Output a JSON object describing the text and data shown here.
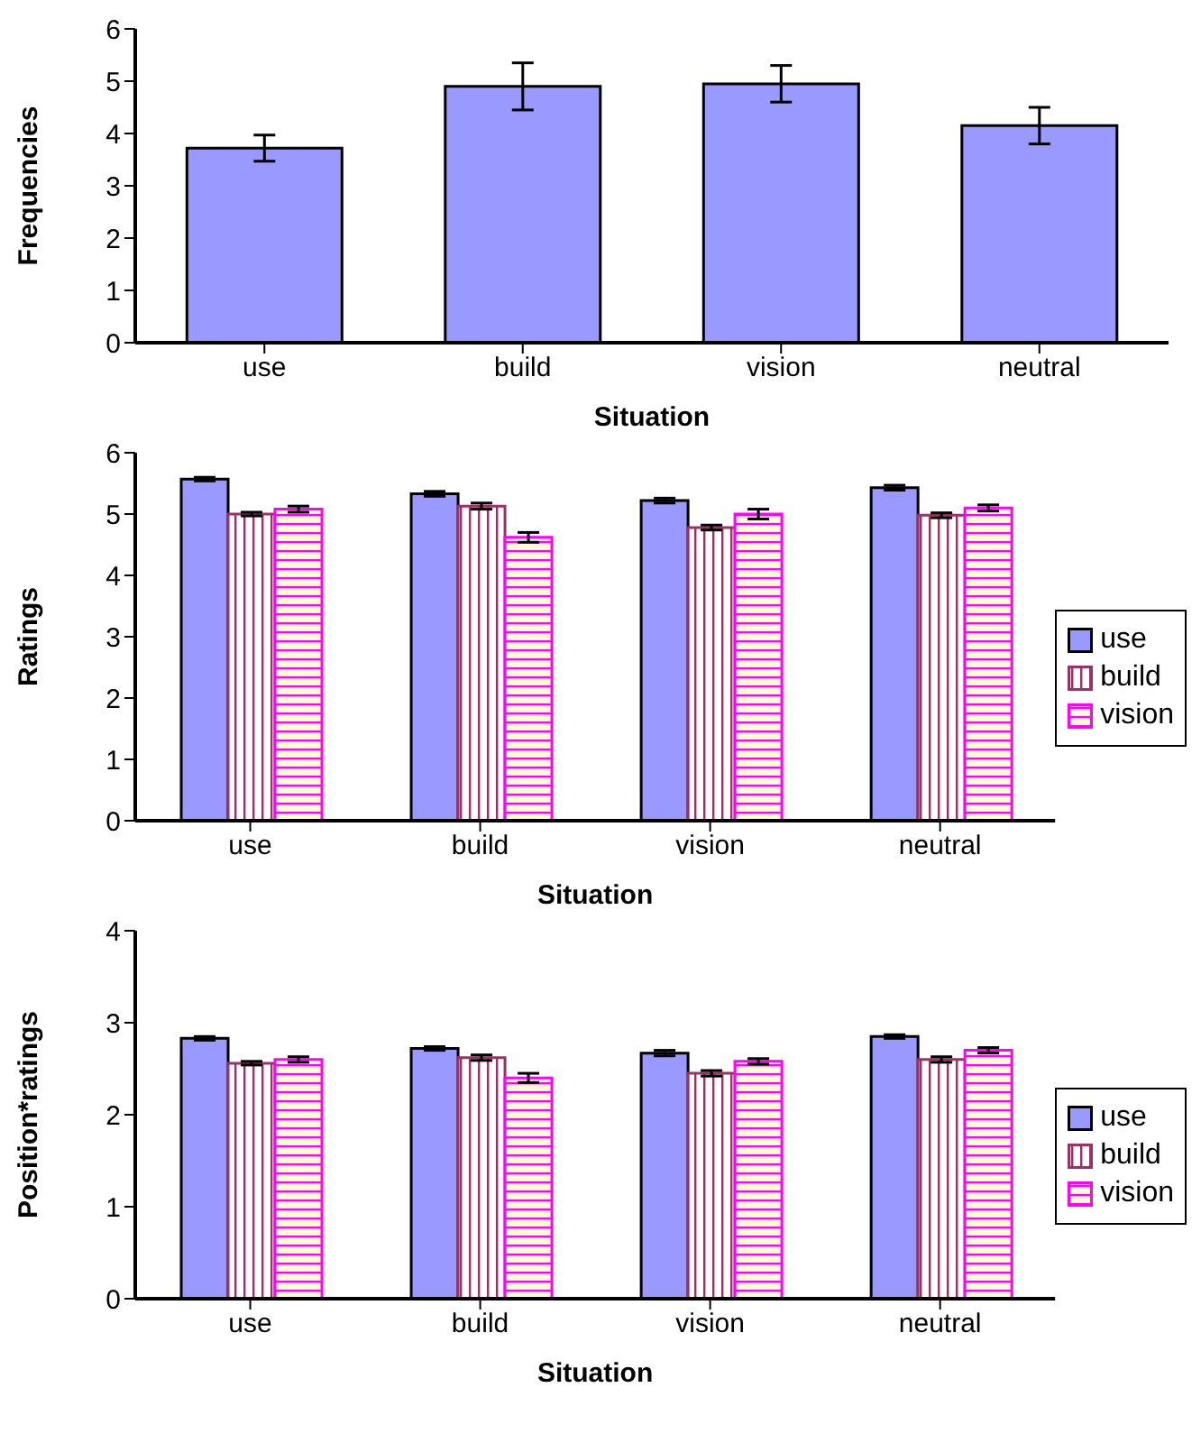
{
  "chart_data": [
    {
      "type": "bar",
      "xlabel": "Situation",
      "ylabel": "Frequencies",
      "categories": [
        "use",
        "build",
        "vision",
        "neutral"
      ],
      "values": [
        3.72,
        4.9,
        4.95,
        4.15
      ],
      "errors": [
        0.25,
        0.45,
        0.35,
        0.35
      ],
      "color": "#9999ff",
      "ylim": [
        0,
        6
      ],
      "yticks": [
        0,
        1,
        2,
        3,
        4,
        5,
        6
      ],
      "grid": false
    },
    {
      "type": "bar",
      "xlabel": "Situation",
      "ylabel": "Ratings",
      "categories": [
        "use",
        "build",
        "vision",
        "neutral"
      ],
      "series": [
        {
          "name": "use",
          "color": "#9999ff",
          "values": [
            5.57,
            5.33,
            5.22,
            5.43
          ],
          "errors": [
            0.03,
            0.04,
            0.04,
            0.04
          ]
        },
        {
          "name": "build",
          "color": "#993366",
          "values": [
            5.0,
            5.13,
            4.78,
            4.98
          ],
          "errors": [
            0.03,
            0.05,
            0.04,
            0.04
          ]
        },
        {
          "name": "vision",
          "color": "#ff00ff",
          "values": [
            5.08,
            4.62,
            5.0,
            5.1
          ],
          "errors": [
            0.05,
            0.08,
            0.08,
            0.05
          ]
        }
      ],
      "ylim": [
        0,
        6
      ],
      "yticks": [
        0,
        1,
        2,
        3,
        4,
        5,
        6
      ],
      "grid": false,
      "legend": "right"
    },
    {
      "type": "bar",
      "xlabel": "Situation",
      "ylabel": "Position*ratings",
      "categories": [
        "use",
        "build",
        "vision",
        "neutral"
      ],
      "series": [
        {
          "name": "use",
          "color": "#9999ff",
          "values": [
            2.83,
            2.72,
            2.67,
            2.85
          ],
          "errors": [
            0.02,
            0.02,
            0.03,
            0.02
          ]
        },
        {
          "name": "build",
          "color": "#993366",
          "values": [
            2.56,
            2.62,
            2.45,
            2.6
          ],
          "errors": [
            0.02,
            0.03,
            0.03,
            0.03
          ]
        },
        {
          "name": "vision",
          "color": "#ff00ff",
          "values": [
            2.6,
            2.4,
            2.58,
            2.7
          ],
          "errors": [
            0.03,
            0.05,
            0.03,
            0.03
          ]
        }
      ],
      "ylim": [
        0,
        4
      ],
      "yticks": [
        0,
        1,
        2,
        3,
        4
      ],
      "grid": false,
      "legend": "right"
    }
  ]
}
